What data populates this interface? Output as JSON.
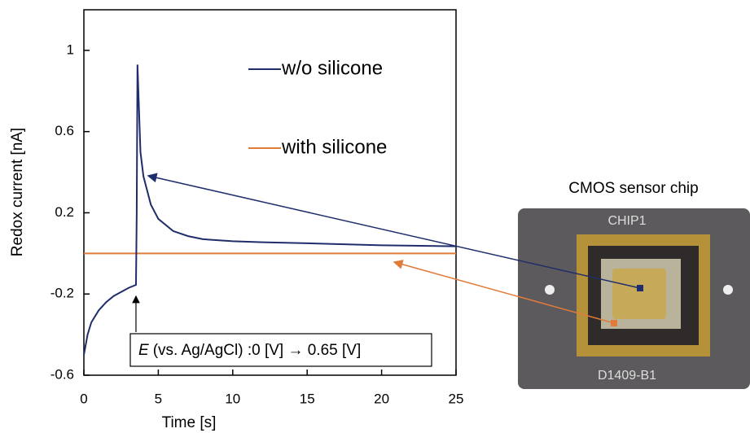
{
  "chart_data": {
    "type": "line",
    "x_label": "Time [s]",
    "y_label": "Redox current [nA]",
    "x": [
      0,
      0.25,
      0.5,
      1,
      1.5,
      2,
      2.5,
      3,
      3.5,
      3.55,
      3.6,
      3.8,
      4,
      4.5,
      5,
      6,
      7,
      8,
      10,
      12,
      15,
      20,
      25
    ],
    "series": [
      {
        "name": "w/o silicone",
        "color": "#1f2d6b",
        "values": [
          -0.5,
          -0.4,
          -0.34,
          -0.28,
          -0.24,
          -0.21,
          -0.19,
          -0.17,
          -0.155,
          0.2,
          0.93,
          0.5,
          0.38,
          0.24,
          0.17,
          0.11,
          0.085,
          0.07,
          0.06,
          0.055,
          0.05,
          0.04,
          0.035
        ]
      },
      {
        "name": "with silicone",
        "color": "#e07b39",
        "values": [
          0,
          0,
          0,
          0,
          0,
          0,
          0,
          0,
          0,
          0,
          0,
          0,
          0,
          0,
          0,
          0,
          0,
          0,
          0,
          0,
          0,
          0,
          0
        ]
      }
    ],
    "xlim": [
      0,
      25
    ],
    "xticks": [
      0,
      5,
      10,
      15,
      20,
      25
    ],
    "ylim": [
      -0.6,
      1.2
    ],
    "yticks": [
      -0.6,
      -0.2,
      0.2,
      0.6,
      1
    ],
    "annotation_symbol": "E",
    "annotation": "(vs. Ag/AgCl) :0 [V] → 0.65 [V]",
    "photo_title": "CMOS sensor chip",
    "photo_texts": [
      "CHIP1",
      "D1409-B1"
    ]
  }
}
